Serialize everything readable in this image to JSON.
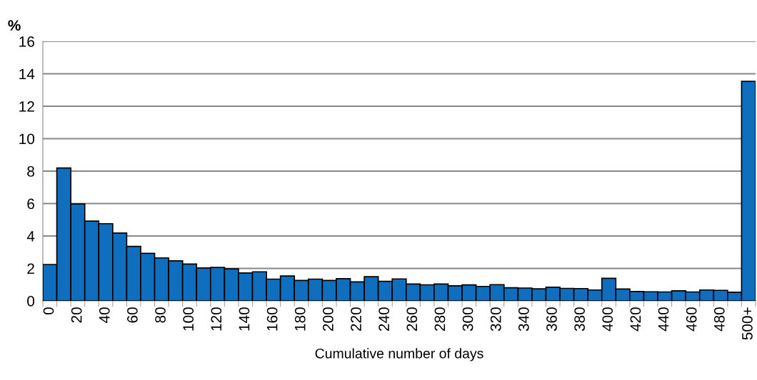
{
  "chart_data": {
    "type": "bar",
    "ylabel": "%",
    "xlabel": "Cumulative number of days",
    "categories": [
      "0",
      null,
      "20",
      null,
      "40",
      null,
      "60",
      null,
      "80",
      null,
      "100",
      null,
      "120",
      null,
      "140",
      null,
      "160",
      null,
      "180",
      null,
      "200",
      null,
      "220",
      null,
      "240",
      null,
      "260",
      null,
      "280",
      null,
      "300",
      null,
      "320",
      null,
      "340",
      null,
      "360",
      null,
      "380",
      null,
      "400",
      null,
      "420",
      null,
      "440",
      null,
      "460",
      null,
      "480",
      null,
      "500+"
    ],
    "values": [
      2.24,
      8.19,
      5.97,
      4.92,
      4.76,
      4.18,
      3.36,
      2.93,
      2.65,
      2.47,
      2.27,
      2.03,
      2.06,
      1.97,
      1.72,
      1.79,
      1.34,
      1.53,
      1.26,
      1.34,
      1.26,
      1.37,
      1.17,
      1.49,
      1.2,
      1.35,
      1.04,
      0.99,
      1.04,
      0.93,
      0.98,
      0.89,
      1.0,
      0.81,
      0.79,
      0.74,
      0.84,
      0.77,
      0.76,
      0.67,
      1.39,
      0.73,
      0.58,
      0.56,
      0.55,
      0.62,
      0.55,
      0.67,
      0.65,
      0.53,
      13.53
    ],
    "color": "#106ebe",
    "ylim": [
      0,
      16
    ],
    "yticks": [
      0,
      2,
      4,
      6,
      8,
      10,
      12,
      14,
      16
    ],
    "grid": "y"
  }
}
